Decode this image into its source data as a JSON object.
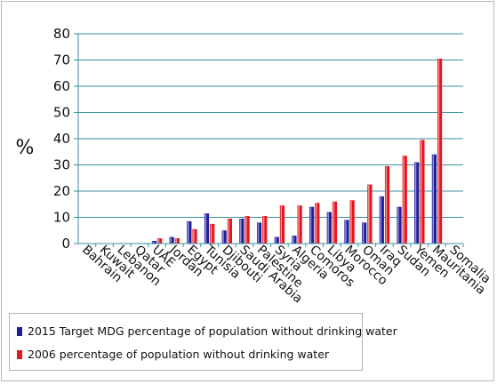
{
  "chart_data": {
    "type": "bar",
    "title": "",
    "xlabel": "",
    "ylabel": "%",
    "ylim": [
      0,
      80
    ],
    "yticks": [
      0,
      10,
      20,
      30,
      40,
      50,
      60,
      70,
      80
    ],
    "grid": true,
    "legend_position": "bottom-left",
    "categories": [
      "Bahrain",
      "Kuwait",
      "Lebanon",
      "Qatar",
      "UAE",
      "Jordan",
      "Egypt",
      "Tunisia",
      "Djibouti",
      "Saudi Arabia",
      "Palestine",
      "Syria",
      "Algeria",
      "Comoros",
      "Libya",
      "Morocco",
      "Oman",
      "Iraq",
      "Sudan",
      "Yemen",
      "Mauritania",
      "Somalia"
    ],
    "series": [
      {
        "name": "2015 Target MDG percentage of population without drinking water",
        "color": "#1f1f9e",
        "values": [
          0,
          0,
          0,
          0,
          1,
          2.5,
          8.5,
          11.5,
          5,
          9.5,
          8,
          2.5,
          3,
          14,
          12,
          9,
          8,
          18,
          14,
          31,
          34,
          0
        ]
      },
      {
        "name": "2006 percentage of population without drinking water",
        "color": "#e8141c",
        "values": [
          0,
          0,
          0,
          0,
          2,
          2,
          5.5,
          7.5,
          9.5,
          10.5,
          10.5,
          14.5,
          14.5,
          15.5,
          16,
          16.5,
          22.5,
          29.5,
          33.5,
          39.5,
          70.5,
          0
        ]
      }
    ]
  }
}
